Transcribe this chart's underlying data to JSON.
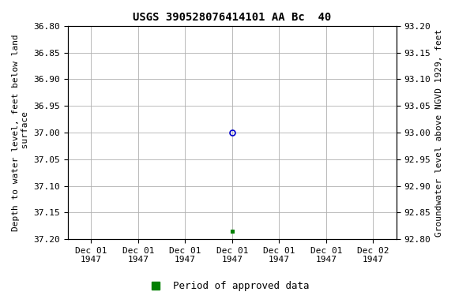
{
  "title": "USGS 390528076414101 AA Bc  40",
  "ylabel_left": "Depth to water level, feet below land\n surface",
  "ylabel_right": "Groundwater level above NGVD 1929, feet",
  "ylim_left_top": 36.8,
  "ylim_left_bottom": 37.2,
  "ylim_right_top": 93.2,
  "ylim_right_bottom": 92.8,
  "yticks_left": [
    36.8,
    36.85,
    36.9,
    36.95,
    37.0,
    37.05,
    37.1,
    37.15,
    37.2
  ],
  "yticks_right": [
    93.2,
    93.15,
    93.1,
    93.05,
    93.0,
    92.95,
    92.9,
    92.85,
    92.8
  ],
  "x_data_blue": [
    3.0
  ],
  "y_data_blue": [
    37.0
  ],
  "x_data_green": [
    3.0
  ],
  "y_data_green": [
    37.185
  ],
  "blue_color": "#0000cc",
  "green_color": "#008000",
  "background_color": "#ffffff",
  "grid_color": "#b0b0b0",
  "xtick_labels": [
    "Dec 01\n1947",
    "Dec 01\n1947",
    "Dec 01\n1947",
    "Dec 01\n1947",
    "Dec 01\n1947",
    "Dec 01\n1947",
    "Dec 02\n1947"
  ],
  "xtick_positions": [
    0,
    1,
    2,
    3,
    4,
    5,
    6
  ],
  "xlim": [
    -0.5,
    6.5
  ],
  "legend_label": "Period of approved data",
  "title_fontsize": 10,
  "axis_label_fontsize": 8,
  "tick_fontsize": 8,
  "legend_fontsize": 9
}
